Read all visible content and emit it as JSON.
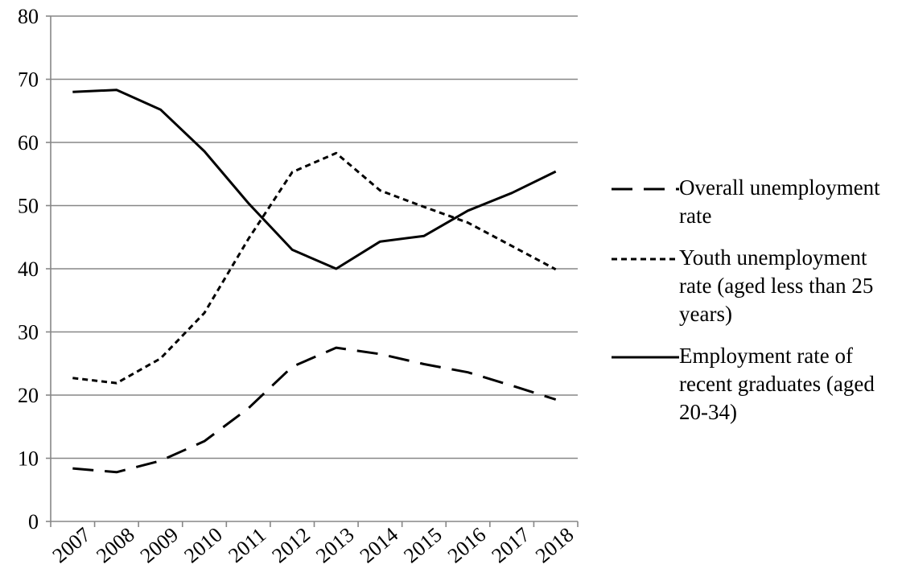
{
  "chart_data": {
    "type": "line",
    "title": "",
    "xlabel": "",
    "ylabel": "",
    "ylim": [
      0,
      80
    ],
    "yticks": [
      0,
      10,
      20,
      30,
      40,
      50,
      60,
      70,
      80
    ],
    "grid": "horizontal",
    "legend_position": "right",
    "x": [
      "2007",
      "2008",
      "2009",
      "2010",
      "2011",
      "2012",
      "2013",
      "2014",
      "2015",
      "2016",
      "2017",
      "2018"
    ],
    "series": [
      {
        "name": "Overall unemployment rate",
        "style": "dashed",
        "values": [
          8.4,
          7.8,
          9.6,
          12.7,
          17.9,
          24.5,
          27.5,
          26.5,
          24.9,
          23.6,
          21.5,
          19.3
        ]
      },
      {
        "name": "Youth unemployment rate (aged less than 25 years)",
        "style": "dotted",
        "values": [
          22.7,
          21.9,
          25.8,
          33.0,
          44.7,
          55.3,
          58.3,
          52.4,
          49.8,
          47.3,
          43.6,
          39.9
        ]
      },
      {
        "name": "Employment rate of recent graduates (aged 20-34)",
        "style": "solid",
        "values": [
          68.0,
          68.3,
          65.2,
          58.6,
          50.4,
          43.0,
          40.0,
          44.3,
          45.2,
          49.2,
          52.0,
          55.4
        ]
      }
    ]
  },
  "colors": {
    "line": "#000000",
    "grid": "#878787",
    "axis": "#878787"
  }
}
